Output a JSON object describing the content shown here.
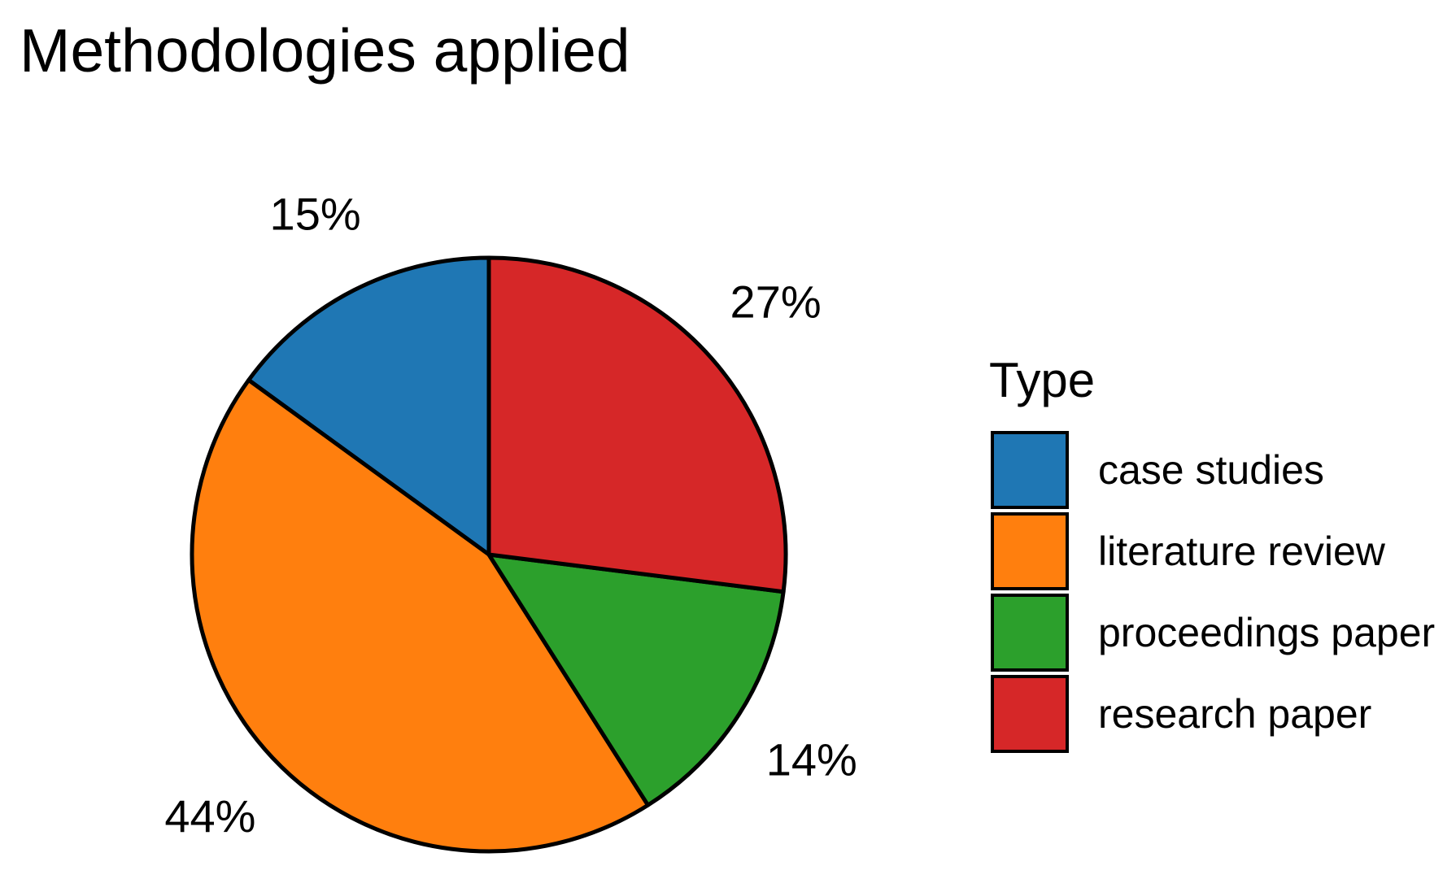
{
  "chart_data": {
    "type": "pie",
    "title": "Methodologies applied",
    "legend_title": "Type",
    "legend_position": "right",
    "slices": [
      {
        "name": "case studies",
        "value": 15,
        "label": "15%",
        "color": "#1f77b4"
      },
      {
        "name": "literature review",
        "value": 44,
        "label": "44%",
        "color": "#ff7f0e"
      },
      {
        "name": "proceedings paper",
        "value": 14,
        "label": "14%",
        "color": "#2ca02c"
      },
      {
        "name": "research paper",
        "value": 27,
        "label": "27%",
        "color": "#d62728"
      }
    ]
  }
}
